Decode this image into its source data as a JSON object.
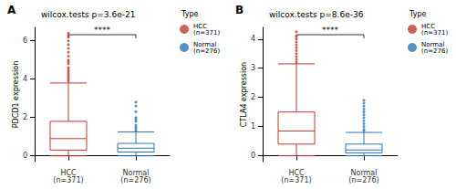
{
  "chart_data": [
    {
      "type": "boxplot",
      "panel": "A",
      "title": "wilcox.tests p=3.6e-21",
      "y_label": "PDCD1 expression",
      "categories": [
        "HCC\n(n=371)",
        "Normal\n(n=276)"
      ],
      "colors": [
        "#C0392B",
        "#2E75B6"
      ],
      "boxes": [
        [
          0.0,
          0.3,
          0.9,
          1.8,
          3.8
        ],
        [
          0.0,
          0.2,
          0.4,
          0.65,
          1.25
        ]
      ],
      "outliers": [
        [
          3.9,
          4.0,
          4.1,
          4.2,
          4.3,
          4.4,
          4.5,
          4.6,
          4.8,
          4.9,
          5.0,
          5.2,
          5.4,
          5.6,
          5.8,
          6.0,
          6.2,
          6.3,
          6.4
        ],
        [
          1.3,
          1.4,
          1.5,
          1.6,
          1.8,
          1.9,
          2.0,
          2.3,
          2.6,
          2.8
        ]
      ],
      "ylim": [
        -0.3,
        6.7
      ],
      "yticks": [
        0,
        2,
        4,
        6
      ],
      "annotation": "****",
      "legend_title": "Type",
      "legend": "right"
    },
    {
      "type": "boxplot",
      "panel": "B",
      "title": "wilcox.tests p=8.6e-36",
      "y_label": "CTLA4 expression",
      "categories": [
        "HCC\n(n=371)",
        "Normal\n(n=276)"
      ],
      "colors": [
        "#C0392B",
        "#2E75B6"
      ],
      "boxes": [
        [
          0.0,
          0.4,
          0.85,
          1.5,
          3.15
        ],
        [
          0.0,
          0.1,
          0.2,
          0.4,
          0.8
        ]
      ],
      "outliers": [
        [
          3.2,
          3.3,
          3.4,
          3.5,
          3.6,
          3.7,
          3.8,
          3.9,
          4.0,
          4.1,
          4.25
        ],
        [
          0.85,
          0.9,
          1.0,
          1.1,
          1.2,
          1.3,
          1.4,
          1.5,
          1.6,
          1.7,
          1.8,
          1.9
        ]
      ],
      "ylim": [
        -0.2,
        4.4
      ],
      "yticks": [
        0,
        1,
        2,
        3,
        4
      ],
      "annotation": "****",
      "legend_title": "Type",
      "legend": "right"
    }
  ]
}
